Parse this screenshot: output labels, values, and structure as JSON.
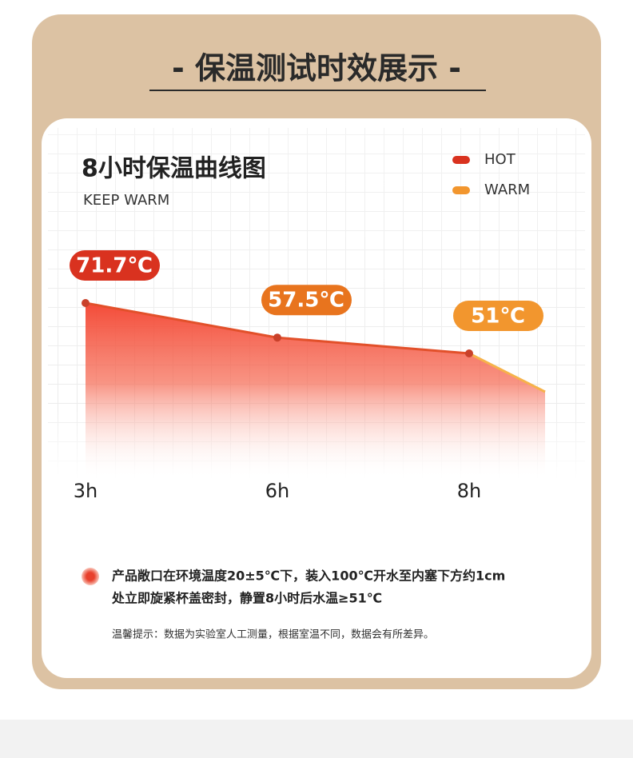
{
  "header": {
    "title": "- 保温测试时效展示 -"
  },
  "chart_data": {
    "type": "line",
    "title": "8小时保温曲线图",
    "subtitle": "KEEP WARM",
    "legend": [
      {
        "name": "HOT",
        "color": "#d9321f"
      },
      {
        "name": "WARM",
        "color": "#f2962e"
      }
    ],
    "categories": [
      "3h",
      "6h",
      "8h"
    ],
    "series": [
      {
        "name": "HOT",
        "color": "#e2502a",
        "values": [
          71.7,
          57.5,
          51
        ],
        "value_labels": [
          "71.7℃",
          "57.5℃",
          "51℃"
        ],
        "label_colors": [
          "#d9321f",
          "#e8741e",
          "#f2962e"
        ]
      }
    ]
  },
  "notes": {
    "lines": [
      "产品敞口在环境温度20±5℃下，装入100℃开水至内塞下方约1cm",
      "处立即旋紧杯盖密封，静置8小时后水温≥51℃"
    ],
    "tip": "温馨提示：数据为实验室人工测量，根据室温不同，数据会有所差异。"
  }
}
